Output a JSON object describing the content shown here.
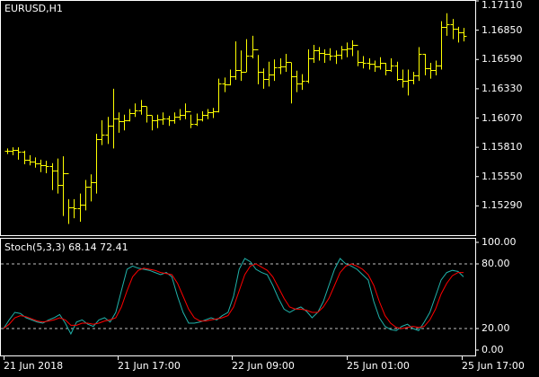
{
  "colors": {
    "background": "#000000",
    "frame": "#ffffff",
    "bars": "#ffff00",
    "stoch_main": "#20b2aa",
    "stoch_signal": "#ff0000",
    "level_line": "#c0c0c0",
    "text": "#ffffff"
  },
  "main_chart": {
    "symbol_label": "EURUSD,H1",
    "y_ticks": [
      "1.17110",
      "1.16850",
      "1.16590",
      "1.16330",
      "1.16070",
      "1.15810",
      "1.15550",
      "1.15290"
    ],
    "y_range": [
      1.1503,
      1.1711
    ]
  },
  "stoch_panel": {
    "label": "Stoch(5,3,3) 68.14 72.41",
    "y_ticks": [
      "100.00",
      "80.00",
      "20.00",
      "0.00"
    ],
    "levels": [
      80,
      20
    ],
    "y_range": [
      0,
      100
    ]
  },
  "x_axis": {
    "ticks": [
      "21 Jun 2018",
      "21 Jun 17:00",
      "22 Jun 09:00",
      "25 Jun 01:00",
      "25 Jun 17:00"
    ]
  },
  "chart_data": [
    {
      "type": "ohlc",
      "title": "EURUSD,H1",
      "categories": [
        "21 Jun 2018",
        "21 Jun 17:00",
        "22 Jun 09:00",
        "25 Jun 01:00",
        "25 Jun 17:00"
      ],
      "ylim": [
        1.1503,
        1.1711
      ],
      "bars_hlc": [
        [
          1.158,
          1.1575,
          1.1578
        ],
        [
          1.1581,
          1.1574,
          1.1579
        ],
        [
          1.1581,
          1.157,
          1.1577
        ],
        [
          1.1578,
          1.1566,
          1.157
        ],
        [
          1.1574,
          1.1565,
          1.1568
        ],
        [
          1.1572,
          1.1563,
          1.1567
        ],
        [
          1.157,
          1.1559,
          1.1565
        ],
        [
          1.1569,
          1.1558,
          1.1564
        ],
        [
          1.1567,
          1.1543,
          1.156
        ],
        [
          1.1571,
          1.154,
          1.1548
        ],
        [
          1.1573,
          1.152,
          1.1558
        ],
        [
          1.1535,
          1.1513,
          1.1528
        ],
        [
          1.1535,
          1.1518,
          1.1527
        ],
        [
          1.154,
          1.1515,
          1.153
        ],
        [
          1.1552,
          1.1525,
          1.1546
        ],
        [
          1.1557,
          1.1533,
          1.155
        ],
        [
          1.1593,
          1.154,
          1.1588
        ],
        [
          1.1605,
          1.1583,
          1.1592
        ],
        [
          1.1608,
          1.1584,
          1.16
        ],
        [
          1.1633,
          1.158,
          1.1607
        ],
        [
          1.1612,
          1.1594,
          1.1604
        ],
        [
          1.161,
          1.1596,
          1.1605
        ],
        [
          1.1615,
          1.1604,
          1.1611
        ],
        [
          1.162,
          1.1608,
          1.1614
        ],
        [
          1.1623,
          1.161,
          1.1618
        ],
        [
          1.1617,
          1.1603,
          1.161
        ],
        [
          1.1609,
          1.1596,
          1.1605
        ],
        [
          1.161,
          1.1598,
          1.1606
        ],
        [
          1.1612,
          1.1601,
          1.1607
        ],
        [
          1.1609,
          1.16,
          1.1605
        ],
        [
          1.1612,
          1.1602,
          1.1608
        ],
        [
          1.1615,
          1.1605,
          1.161
        ],
        [
          1.162,
          1.1606,
          1.1613
        ],
        [
          1.161,
          1.1598,
          1.1602
        ],
        [
          1.1611,
          1.16,
          1.1606
        ],
        [
          1.1613,
          1.1604,
          1.161
        ],
        [
          1.1615,
          1.1606,
          1.1612
        ],
        [
          1.1616,
          1.1607,
          1.1613
        ],
        [
          1.1642,
          1.1612,
          1.1638
        ],
        [
          1.1643,
          1.163,
          1.1637
        ],
        [
          1.165,
          1.1636,
          1.1644
        ],
        [
          1.1675,
          1.1641,
          1.165
        ],
        [
          1.1667,
          1.164,
          1.1648
        ],
        [
          1.1677,
          1.1648,
          1.1662
        ],
        [
          1.168,
          1.166,
          1.1668
        ],
        [
          1.1663,
          1.1637,
          1.1648
        ],
        [
          1.1651,
          1.1633,
          1.1642
        ],
        [
          1.1657,
          1.1635,
          1.1646
        ],
        [
          1.1659,
          1.164,
          1.1652
        ],
        [
          1.166,
          1.1646,
          1.1653
        ],
        [
          1.1664,
          1.1648,
          1.1657
        ],
        [
          1.1656,
          1.162,
          1.1644
        ],
        [
          1.1649,
          1.163,
          1.1638
        ],
        [
          1.1646,
          1.1632,
          1.164
        ],
        [
          1.1668,
          1.1638,
          1.166
        ],
        [
          1.1672,
          1.1656,
          1.1667
        ],
        [
          1.167,
          1.1658,
          1.1665
        ],
        [
          1.1668,
          1.1656,
          1.1664
        ],
        [
          1.1669,
          1.1658,
          1.1662
        ],
        [
          1.1667,
          1.1655,
          1.1663
        ],
        [
          1.1671,
          1.1659,
          1.1668
        ],
        [
          1.1674,
          1.1661,
          1.1669
        ],
        [
          1.1676,
          1.1662,
          1.1672
        ],
        [
          1.1667,
          1.1653,
          1.1657
        ],
        [
          1.1662,
          1.1651,
          1.1656
        ],
        [
          1.166,
          1.165,
          1.1655
        ],
        [
          1.1658,
          1.1648,
          1.1653
        ],
        [
          1.1661,
          1.165,
          1.1656
        ],
        [
          1.1656,
          1.1645,
          1.165
        ],
        [
          1.166,
          1.1648,
          1.1654
        ],
        [
          1.1657,
          1.164,
          1.1642
        ],
        [
          1.165,
          1.1634,
          1.164
        ],
        [
          1.165,
          1.1627,
          1.1641
        ],
        [
          1.1648,
          1.1637,
          1.1645
        ],
        [
          1.167,
          1.164,
          1.1664
        ],
        [
          1.1664,
          1.1645,
          1.1651
        ],
        [
          1.1656,
          1.1642,
          1.165
        ],
        [
          1.1658,
          1.1645,
          1.1654
        ],
        [
          1.1693,
          1.165,
          1.1688
        ],
        [
          1.17,
          1.168,
          1.169
        ],
        [
          1.1695,
          1.1677,
          1.1686
        ],
        [
          1.1688,
          1.1674,
          1.1683
        ],
        [
          1.1687,
          1.1675,
          1.168
        ]
      ]
    },
    {
      "type": "line",
      "title": "Stoch(5,3,3) 68.14 72.41",
      "ylim": [
        0,
        100
      ],
      "series": [
        {
          "values": [
            20,
            28,
            35,
            34,
            30,
            28,
            26,
            25,
            28,
            30,
            33,
            25,
            15,
            26,
            28,
            24,
            22,
            28,
            30,
            26,
            35,
            55,
            75,
            78,
            76,
            75,
            74,
            72,
            70,
            72,
            68,
            50,
            35,
            25,
            25,
            26,
            28,
            30,
            28,
            32,
            35,
            50,
            75,
            85,
            82,
            75,
            72,
            70,
            60,
            48,
            38,
            35,
            38,
            40,
            36,
            30,
            35,
            45,
            60,
            75,
            85,
            80,
            78,
            75,
            70,
            65,
            45,
            30,
            22,
            19,
            18,
            22,
            24,
            20,
            18,
            26,
            35,
            50,
            65,
            72,
            74,
            73,
            68
          ]
        },
        {
          "values": [
            20,
            24,
            30,
            32,
            31,
            29,
            27,
            26,
            27,
            28,
            30,
            28,
            23,
            23,
            25,
            25,
            24,
            25,
            27,
            28,
            30,
            40,
            55,
            68,
            74,
            76,
            75,
            74,
            72,
            71,
            70,
            62,
            50,
            38,
            30,
            27,
            27,
            28,
            29,
            30,
            32,
            40,
            55,
            70,
            78,
            80,
            77,
            74,
            68,
            58,
            48,
            40,
            38,
            38,
            37,
            35,
            35,
            40,
            48,
            60,
            72,
            78,
            80,
            78,
            75,
            70,
            60,
            45,
            32,
            25,
            21,
            20,
            21,
            22,
            21,
            22,
            28,
            38,
            52,
            62,
            69,
            72,
            72
          ]
        }
      ]
    }
  ]
}
